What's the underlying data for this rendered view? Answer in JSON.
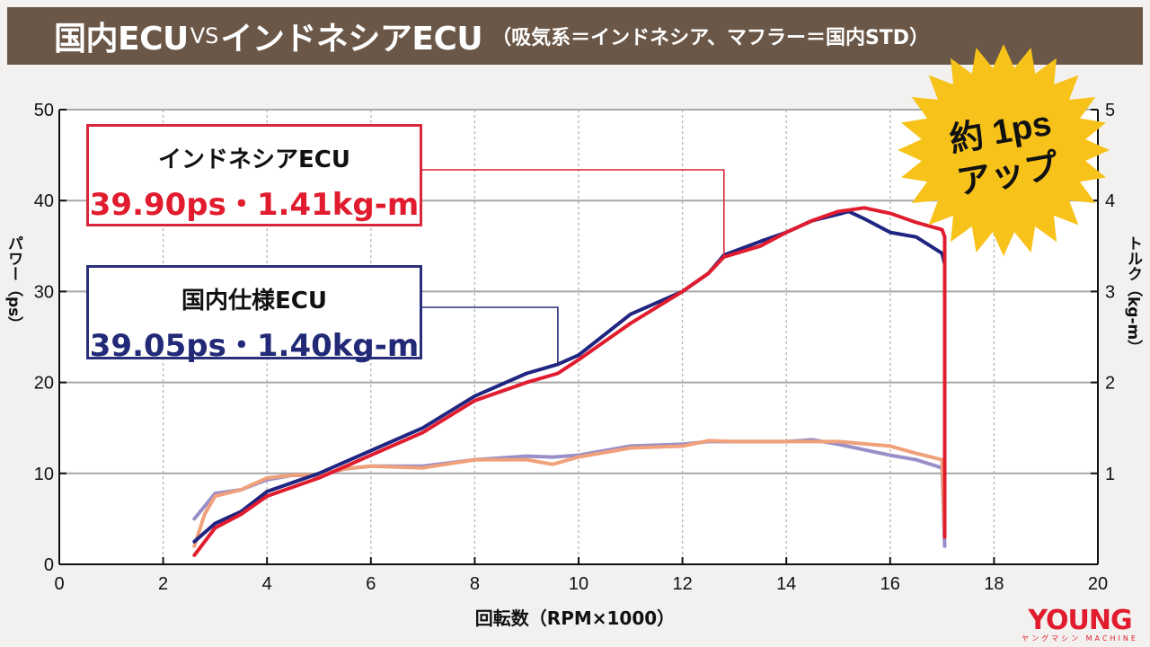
{
  "title": {
    "main_left": "国内ECU",
    "vs": "VS",
    "main_right": "インドネシアECU",
    "subtitle": "（吸気系＝インドネシア、マフラー＝国内STD）"
  },
  "labels": {
    "indonesia_name": "インドネシアECU",
    "indonesia_value": "39.90ps・1.41kg-m",
    "domestic_name": "国内仕様ECU",
    "domestic_value": "39.05ps・1.40kg-m"
  },
  "badge": {
    "line1": "約 1ps",
    "line2": "アップ"
  },
  "logo": {
    "main": "YOUNG",
    "sub": "ヤングマシン MACHINE"
  },
  "colors": {
    "indonesia_power": "#e01c2e",
    "domestic_power": "#1f2580",
    "indonesia_torque": "#f0a07a",
    "domestic_torque": "#9a8ec8",
    "badge": "#f7c21a",
    "title_bar": "#6b5747"
  },
  "chart_data": {
    "type": "line",
    "xlabel": "回転数（RPM×1000）",
    "ylabel_left": "パワー（ps）",
    "ylabel_right": "トルク（kg-m）",
    "xlim": [
      0,
      20
    ],
    "ylim_left": [
      0,
      50
    ],
    "ylim_right": [
      0,
      5
    ],
    "x_ticks": [
      "0",
      "2",
      "4",
      "6",
      "8",
      "10",
      "12",
      "14",
      "16",
      "18",
      "20"
    ],
    "y_ticks_left": [
      "0",
      "10",
      "20",
      "30",
      "40",
      "50"
    ],
    "y_ticks_right": [
      "",
      "1",
      "2",
      "3",
      "4",
      "5"
    ],
    "grid": true,
    "series": [
      {
        "name": "インドネシアECU",
        "axis": "left",
        "points": [
          [
            2.6,
            1
          ],
          [
            3,
            4
          ],
          [
            3.5,
            5.5
          ],
          [
            4,
            7.5
          ],
          [
            5,
            9.5
          ],
          [
            6,
            12
          ],
          [
            7,
            14.5
          ],
          [
            8,
            18
          ],
          [
            9,
            20
          ],
          [
            9.6,
            21
          ],
          [
            10,
            22.5
          ],
          [
            11,
            26.5
          ],
          [
            12,
            30
          ],
          [
            12.5,
            32
          ],
          [
            12.8,
            33.8
          ],
          [
            13.5,
            35
          ],
          [
            14,
            36.5
          ],
          [
            14.5,
            37.8
          ],
          [
            15,
            38.8
          ],
          [
            15.5,
            39.2
          ],
          [
            16,
            38.6
          ],
          [
            16.5,
            37.6
          ],
          [
            17,
            36.8
          ],
          [
            17.05,
            36
          ],
          [
            17.05,
            3
          ]
        ]
      },
      {
        "name": "国内仕様ECU",
        "axis": "left",
        "points": [
          [
            2.6,
            2.5
          ],
          [
            3,
            4.5
          ],
          [
            3.5,
            5.8
          ],
          [
            4,
            8
          ],
          [
            5,
            10
          ],
          [
            6,
            12.5
          ],
          [
            7,
            15
          ],
          [
            8,
            18.5
          ],
          [
            9,
            21
          ],
          [
            9.6,
            22
          ],
          [
            10,
            23
          ],
          [
            11,
            27.5
          ],
          [
            12,
            30
          ],
          [
            12.5,
            32
          ],
          [
            12.8,
            34
          ],
          [
            13.5,
            35.5
          ],
          [
            14,
            36.5
          ],
          [
            14.5,
            37.8
          ],
          [
            15,
            38.5
          ],
          [
            15.2,
            38.8
          ],
          [
            15.5,
            38
          ],
          [
            16,
            36.5
          ],
          [
            16.5,
            36
          ],
          [
            17,
            34.2
          ],
          [
            17.05,
            33
          ],
          [
            17.05,
            5
          ]
        ]
      },
      {
        "name": "インドネシアECU torque",
        "axis": "right",
        "points": [
          [
            2.6,
            0.2
          ],
          [
            2.8,
            0.55
          ],
          [
            3,
            0.75
          ],
          [
            3.5,
            0.82
          ],
          [
            4,
            0.95
          ],
          [
            4.5,
            0.98
          ],
          [
            5,
            0.98
          ],
          [
            5.5,
            1.05
          ],
          [
            6,
            1.08
          ],
          [
            7,
            1.06
          ],
          [
            8,
            1.15
          ],
          [
            9,
            1.15
          ],
          [
            9.5,
            1.1
          ],
          [
            10,
            1.18
          ],
          [
            11,
            1.28
          ],
          [
            12,
            1.3
          ],
          [
            12.5,
            1.36
          ],
          [
            13,
            1.35
          ],
          [
            14,
            1.35
          ],
          [
            15,
            1.35
          ],
          [
            16,
            1.3
          ],
          [
            16.5,
            1.22
          ],
          [
            17,
            1.15
          ],
          [
            17.05,
            0.3
          ]
        ]
      },
      {
        "name": "国内仕様ECU torque",
        "axis": "right",
        "points": [
          [
            2.6,
            0.5
          ],
          [
            3,
            0.78
          ],
          [
            3.5,
            0.82
          ],
          [
            4,
            0.93
          ],
          [
            4.5,
            0.98
          ],
          [
            5,
            0.97
          ],
          [
            5.5,
            1.05
          ],
          [
            6,
            1.08
          ],
          [
            7,
            1.08
          ],
          [
            8,
            1.15
          ],
          [
            9,
            1.19
          ],
          [
            9.5,
            1.18
          ],
          [
            10,
            1.2
          ],
          [
            11,
            1.3
          ],
          [
            12,
            1.32
          ],
          [
            12.5,
            1.35
          ],
          [
            13,
            1.35
          ],
          [
            14,
            1.35
          ],
          [
            14.5,
            1.37
          ],
          [
            15,
            1.32
          ],
          [
            16,
            1.2
          ],
          [
            16.5,
            1.15
          ],
          [
            17,
            1.06
          ],
          [
            17.05,
            0.2
          ]
        ]
      }
    ]
  }
}
